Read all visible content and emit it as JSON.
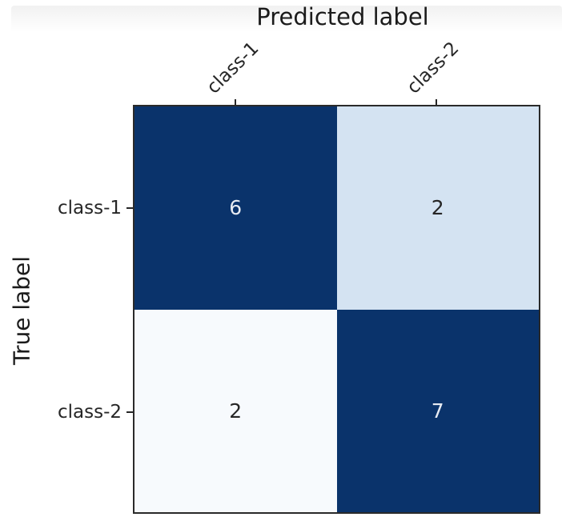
{
  "figure": {
    "top_band": "window-shadow-gradient"
  },
  "chart_data": {
    "type": "heatmap",
    "title": "Predicted label",
    "xlabel": "Predicted label",
    "ylabel": "True label",
    "x_categories": [
      "class-1",
      "class-2"
    ],
    "y_categories": [
      "class-1",
      "class-2"
    ],
    "matrix": [
      [
        6,
        2
      ],
      [
        2,
        7
      ]
    ],
    "colormap": "Blues",
    "cell_colors": [
      [
        "#0a336b",
        "#d4e3f2"
      ],
      [
        "#f7fafd",
        "#0a336b"
      ]
    ],
    "cell_text_colors": [
      [
        "#e7ebf2",
        "#262626"
      ],
      [
        "#262626",
        "#e7ebf2"
      ]
    ],
    "border_color": "#2a2a2a",
    "tick_color": "#262626",
    "x_tick_rotation_deg": 45,
    "legend": "none",
    "grid": false,
    "axis_ranges": {
      "rows": 2,
      "cols": 2
    }
  }
}
